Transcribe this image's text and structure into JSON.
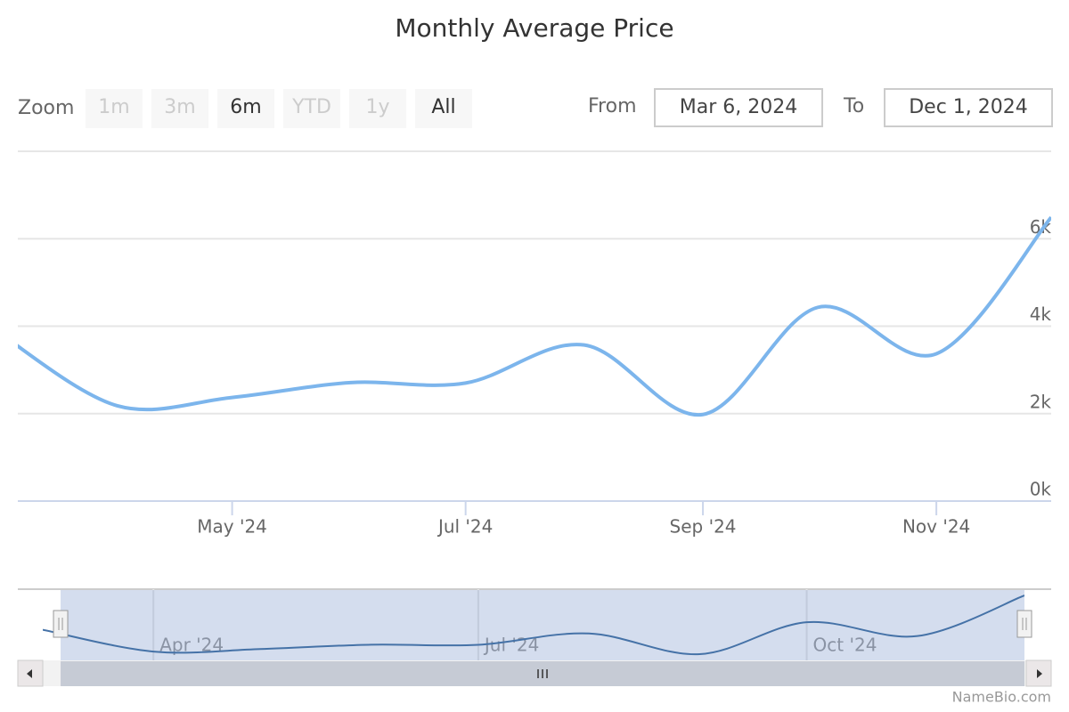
{
  "chart_data": {
    "type": "line",
    "title": "Monthly Average Price",
    "x": [
      "2024-03",
      "2024-04",
      "2024-05",
      "2024-06",
      "2024-07",
      "2024-08",
      "2024-09",
      "2024-10",
      "2024-11",
      "2024-12"
    ],
    "values": [
      3850,
      2180,
      2370,
      2710,
      2700,
      3570,
      1980,
      4430,
      3370,
      6490
    ],
    "color": "#7cb5ec",
    "xlim": [
      "2024-03-06",
      "2024-12-01"
    ],
    "xticks": [
      {
        "value": "2024-05",
        "label": "May '24"
      },
      {
        "value": "2024-07",
        "label": "Jul '24"
      },
      {
        "value": "2024-09",
        "label": "Sep '24"
      },
      {
        "value": "2024-11",
        "label": "Nov '24"
      }
    ],
    "ylim": [
      0,
      8000
    ],
    "yticks": [
      {
        "value": 0,
        "label": "0k"
      },
      {
        "value": 2000,
        "label": "2k"
      },
      {
        "value": 4000,
        "label": "4k"
      },
      {
        "value": 6000,
        "label": "6k"
      }
    ],
    "grid": true,
    "navigator": {
      "color": "#4572a7",
      "xlim": [
        "2024-03",
        "2024-12"
      ],
      "xticks": [
        {
          "value": "2024-04",
          "label": "Apr '24"
        },
        {
          "value": "2024-07",
          "label": "Jul '24"
        },
        {
          "value": "2024-10",
          "label": "Oct '24"
        }
      ]
    }
  },
  "range_selector": {
    "zoom_label": "Zoom",
    "buttons": [
      {
        "label": "1m",
        "enabled": false
      },
      {
        "label": "3m",
        "enabled": false
      },
      {
        "label": "6m",
        "enabled": true
      },
      {
        "label": "YTD",
        "enabled": false
      },
      {
        "label": "1y",
        "enabled": false
      },
      {
        "label": "All",
        "enabled": true
      }
    ],
    "from_label": "From",
    "from": "Mar 6, 2024",
    "to_label": "To",
    "to": "Dec 1, 2024"
  },
  "credit": "NameBio.com"
}
